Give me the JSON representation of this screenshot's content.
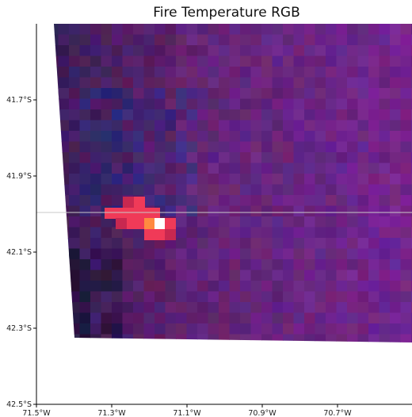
{
  "title": "Fire Temperature RGB",
  "map": {
    "extent": {
      "lon_min": -71.5,
      "lon_max": -70.5,
      "lat_min": -42.5,
      "lat_max": -41.5
    },
    "x_ticks": [
      {
        "value": -71.5,
        "label": "71.5°W"
      },
      {
        "value": -71.3,
        "label": "71.3°W"
      },
      {
        "value": -71.1,
        "label": "71.1°W"
      },
      {
        "value": -70.9,
        "label": "70.9°W"
      },
      {
        "value": -70.7,
        "label": "70.7°W"
      }
    ],
    "y_ticks": [
      {
        "value": -41.7,
        "label": "41.7°S"
      },
      {
        "value": -41.9,
        "label": "41.9°S"
      },
      {
        "value": -42.1,
        "label": "42.1°S"
      },
      {
        "value": -42.3,
        "label": "42.3°S"
      },
      {
        "value": -42.5,
        "label": "42.5°S"
      }
    ],
    "crosshair_lat": -42.0,
    "colors": {
      "base": "#4a2a5e",
      "dark": "#2a1430",
      "blue": "#2a2f70",
      "fire_core": "#ffffff",
      "fire_orange": "#ff8a40",
      "fire_red": "#f03a58",
      "fire_dark_red": "#c82850"
    }
  }
}
